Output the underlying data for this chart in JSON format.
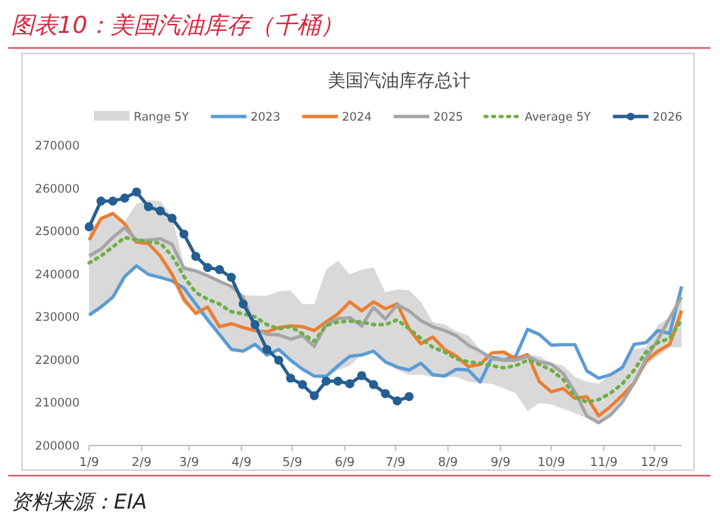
{
  "chart_data": {
    "type": "line",
    "title": "图表10：美国汽油库存（千桶）",
    "subtitle": "美国汽油库存总计",
    "annotations": [
      "资料来源：EIA"
    ],
    "x": [
      "--01-09",
      "--01-16",
      "--01-23",
      "--01-30",
      "--02-06",
      "--02-13",
      "--02-20",
      "--02-27",
      "--03-06",
      "--03-13",
      "--03-20",
      "--03-27",
      "--04-03",
      "--04-10",
      "--04-17",
      "--04-24",
      "--05-01",
      "--05-08",
      "--05-15",
      "--05-22",
      "--05-29",
      "--06-05",
      "--06-12",
      "--06-19",
      "--06-26",
      "--07-03",
      "--07-10",
      "--07-17",
      "--07-24",
      "--07-31",
      "--08-07",
      "--08-14",
      "--08-21",
      "--08-28",
      "--09-04",
      "--09-11",
      "--09-18",
      "--09-25",
      "--10-02",
      "--10-09",
      "--10-16",
      "--10-23",
      "--10-30",
      "--11-06",
      "--11-13",
      "--11-20",
      "--11-27",
      "--12-04",
      "--12-11",
      "--12-18",
      "--12-25"
    ],
    "xlim": [
      "--01-09",
      "--12-25"
    ],
    "xticks": [
      {
        "value": "--01-09",
        "label": "1/9"
      },
      {
        "value": "--02-09",
        "label": "2/9"
      },
      {
        "value": "--03-09",
        "label": "3/9"
      },
      {
        "value": "--04-09",
        "label": "4/9"
      },
      {
        "value": "--05-09",
        "label": "5/9"
      },
      {
        "value": "--06-09",
        "label": "6/9"
      },
      {
        "value": "--07-09",
        "label": "7/9"
      },
      {
        "value": "--08-09",
        "label": "8/9"
      },
      {
        "value": "--09-09",
        "label": "9/9"
      },
      {
        "value": "--10-09",
        "label": "10/9"
      },
      {
        "value": "--11-09",
        "label": "11/9"
      },
      {
        "value": "--12-09",
        "label": "12/9"
      }
    ],
    "ylim": [
      200000,
      270000
    ],
    "yticks": [
      200000,
      210000,
      220000,
      230000,
      240000,
      250000,
      260000,
      270000
    ],
    "legend": "top",
    "grid": false,
    "series": [
      {
        "name": "Range 5Y",
        "type": "area",
        "color": "#d9d9d9",
        "values": [
          null,
          null,
          null,
          null,
          null,
          null,
          null,
          null,
          null,
          null,
          null,
          null,
          null,
          null,
          null,
          null,
          null,
          null,
          null,
          null,
          null,
          null,
          null,
          null,
          null,
          null,
          null,
          null,
          null,
          null,
          null,
          null,
          null,
          null,
          null,
          null,
          null,
          null,
          null,
          null,
          null,
          null,
          null,
          null,
          null,
          null,
          null,
          null,
          null,
          null,
          null
        ],
        "upper": [
          250100,
          253000,
          254300,
          252200,
          256400,
          257200,
          257000,
          253300,
          242100,
          241000,
          239900,
          238300,
          236700,
          235100,
          234900,
          234900,
          235900,
          236200,
          233000,
          233000,
          241000,
          243100,
          239900,
          241000,
          241500,
          235700,
          236400,
          236200,
          233500,
          228800,
          228200,
          226600,
          225600,
          222400,
          220800,
          221800,
          220800,
          221300,
          220800,
          219200,
          218600,
          216000,
          214900,
          214400,
          216500,
          218600,
          222400,
          222900,
          228200,
          229800,
          235700
        ],
        "lower": [
          230400,
          232300,
          234600,
          239400,
          241900,
          239900,
          239200,
          238400,
          233000,
          231400,
          229300,
          225900,
          222400,
          222000,
          223600,
          221100,
          222400,
          219900,
          217800,
          216200,
          216000,
          217600,
          218600,
          221100,
          222000,
          219500,
          217600,
          216500,
          216500,
          216000,
          216000,
          216000,
          214900,
          214600,
          214400,
          213300,
          212200,
          208000,
          209900,
          209600,
          208500,
          207500,
          206400,
          205300,
          206900,
          209900,
          214600,
          218600,
          220800,
          222900,
          222900
        ]
      },
      {
        "name": "2023",
        "color": "#5b9bd5",
        "marker": "none",
        "line_style": "solid",
        "values": [
          230400,
          232300,
          234600,
          239400,
          241900,
          239900,
          239200,
          238400,
          236700,
          233000,
          229300,
          225900,
          222400,
          222000,
          223600,
          221100,
          222400,
          219900,
          217800,
          216200,
          216100,
          218600,
          220800,
          221100,
          222000,
          219500,
          218300,
          217600,
          219200,
          216500,
          216200,
          217800,
          217600,
          214800,
          220600,
          219900,
          220800,
          227100,
          225900,
          223400,
          223500,
          223500,
          217400,
          215700,
          216500,
          218200,
          223600,
          224000,
          226800,
          226100,
          237100
        ]
      },
      {
        "name": "2024",
        "color": "#ed7d31",
        "marker": "none",
        "line_style": "solid",
        "values": [
          247900,
          252900,
          254100,
          251700,
          247400,
          247100,
          244200,
          239900,
          234100,
          230800,
          232300,
          227700,
          228400,
          227500,
          226800,
          226500,
          227500,
          227900,
          227700,
          226800,
          228800,
          230700,
          233500,
          231400,
          233500,
          231900,
          233000,
          227200,
          223700,
          225300,
          222400,
          220800,
          218400,
          218900,
          221600,
          221800,
          220200,
          221200,
          214900,
          212500,
          213300,
          211000,
          211400,
          206900,
          209100,
          211700,
          214600,
          219700,
          222000,
          223600,
          231400
        ]
      },
      {
        "name": "2025",
        "color": "#a5a5a5",
        "marker": "none",
        "line_style": "solid",
        "values": [
          244200,
          245800,
          248500,
          250800,
          247900,
          247900,
          248200,
          246900,
          241300,
          240700,
          239600,
          238300,
          237100,
          234600,
          227200,
          225900,
          225800,
          224800,
          225600,
          223100,
          228200,
          229600,
          229800,
          227900,
          232200,
          229500,
          232800,
          231400,
          229100,
          227700,
          226800,
          225600,
          223400,
          222000,
          220200,
          219900,
          219900,
          220800,
          219500,
          219000,
          216800,
          212500,
          206900,
          205300,
          207100,
          210100,
          214600,
          220200,
          224700,
          229800,
          234600
        ]
      },
      {
        "name": "Average 5Y",
        "color": "#70ad47",
        "marker": "none",
        "line_style": "dotted",
        "values": [
          242600,
          244200,
          246300,
          248500,
          247900,
          247400,
          247200,
          244200,
          239400,
          235700,
          234100,
          233000,
          231200,
          230700,
          230000,
          228200,
          227200,
          227700,
          226100,
          224300,
          228000,
          228800,
          229000,
          228800,
          228200,
          228200,
          229300,
          227200,
          225000,
          222900,
          221800,
          220200,
          219500,
          219200,
          218600,
          218100,
          218600,
          219900,
          218900,
          217600,
          215400,
          211400,
          210100,
          210700,
          212200,
          214400,
          217600,
          221800,
          224000,
          225000,
          229300
        ]
      },
      {
        "name": "2026",
        "color": "#255e91",
        "marker": "circle",
        "line_style": "solid",
        "values": [
          251000,
          257000,
          257000,
          257700,
          259100,
          255700,
          254700,
          253000,
          249300,
          244100,
          241500,
          241000,
          239200,
          233000,
          228200,
          222400,
          219900,
          215700,
          214200,
          211600,
          215000,
          215000,
          214400,
          216300,
          214200,
          212100,
          210400,
          211400,
          null,
          null,
          null,
          null,
          null,
          null,
          null,
          null,
          null,
          null,
          null,
          null,
          null,
          null,
          null,
          null,
          null,
          null,
          null,
          null,
          null,
          null,
          null
        ]
      }
    ]
  }
}
